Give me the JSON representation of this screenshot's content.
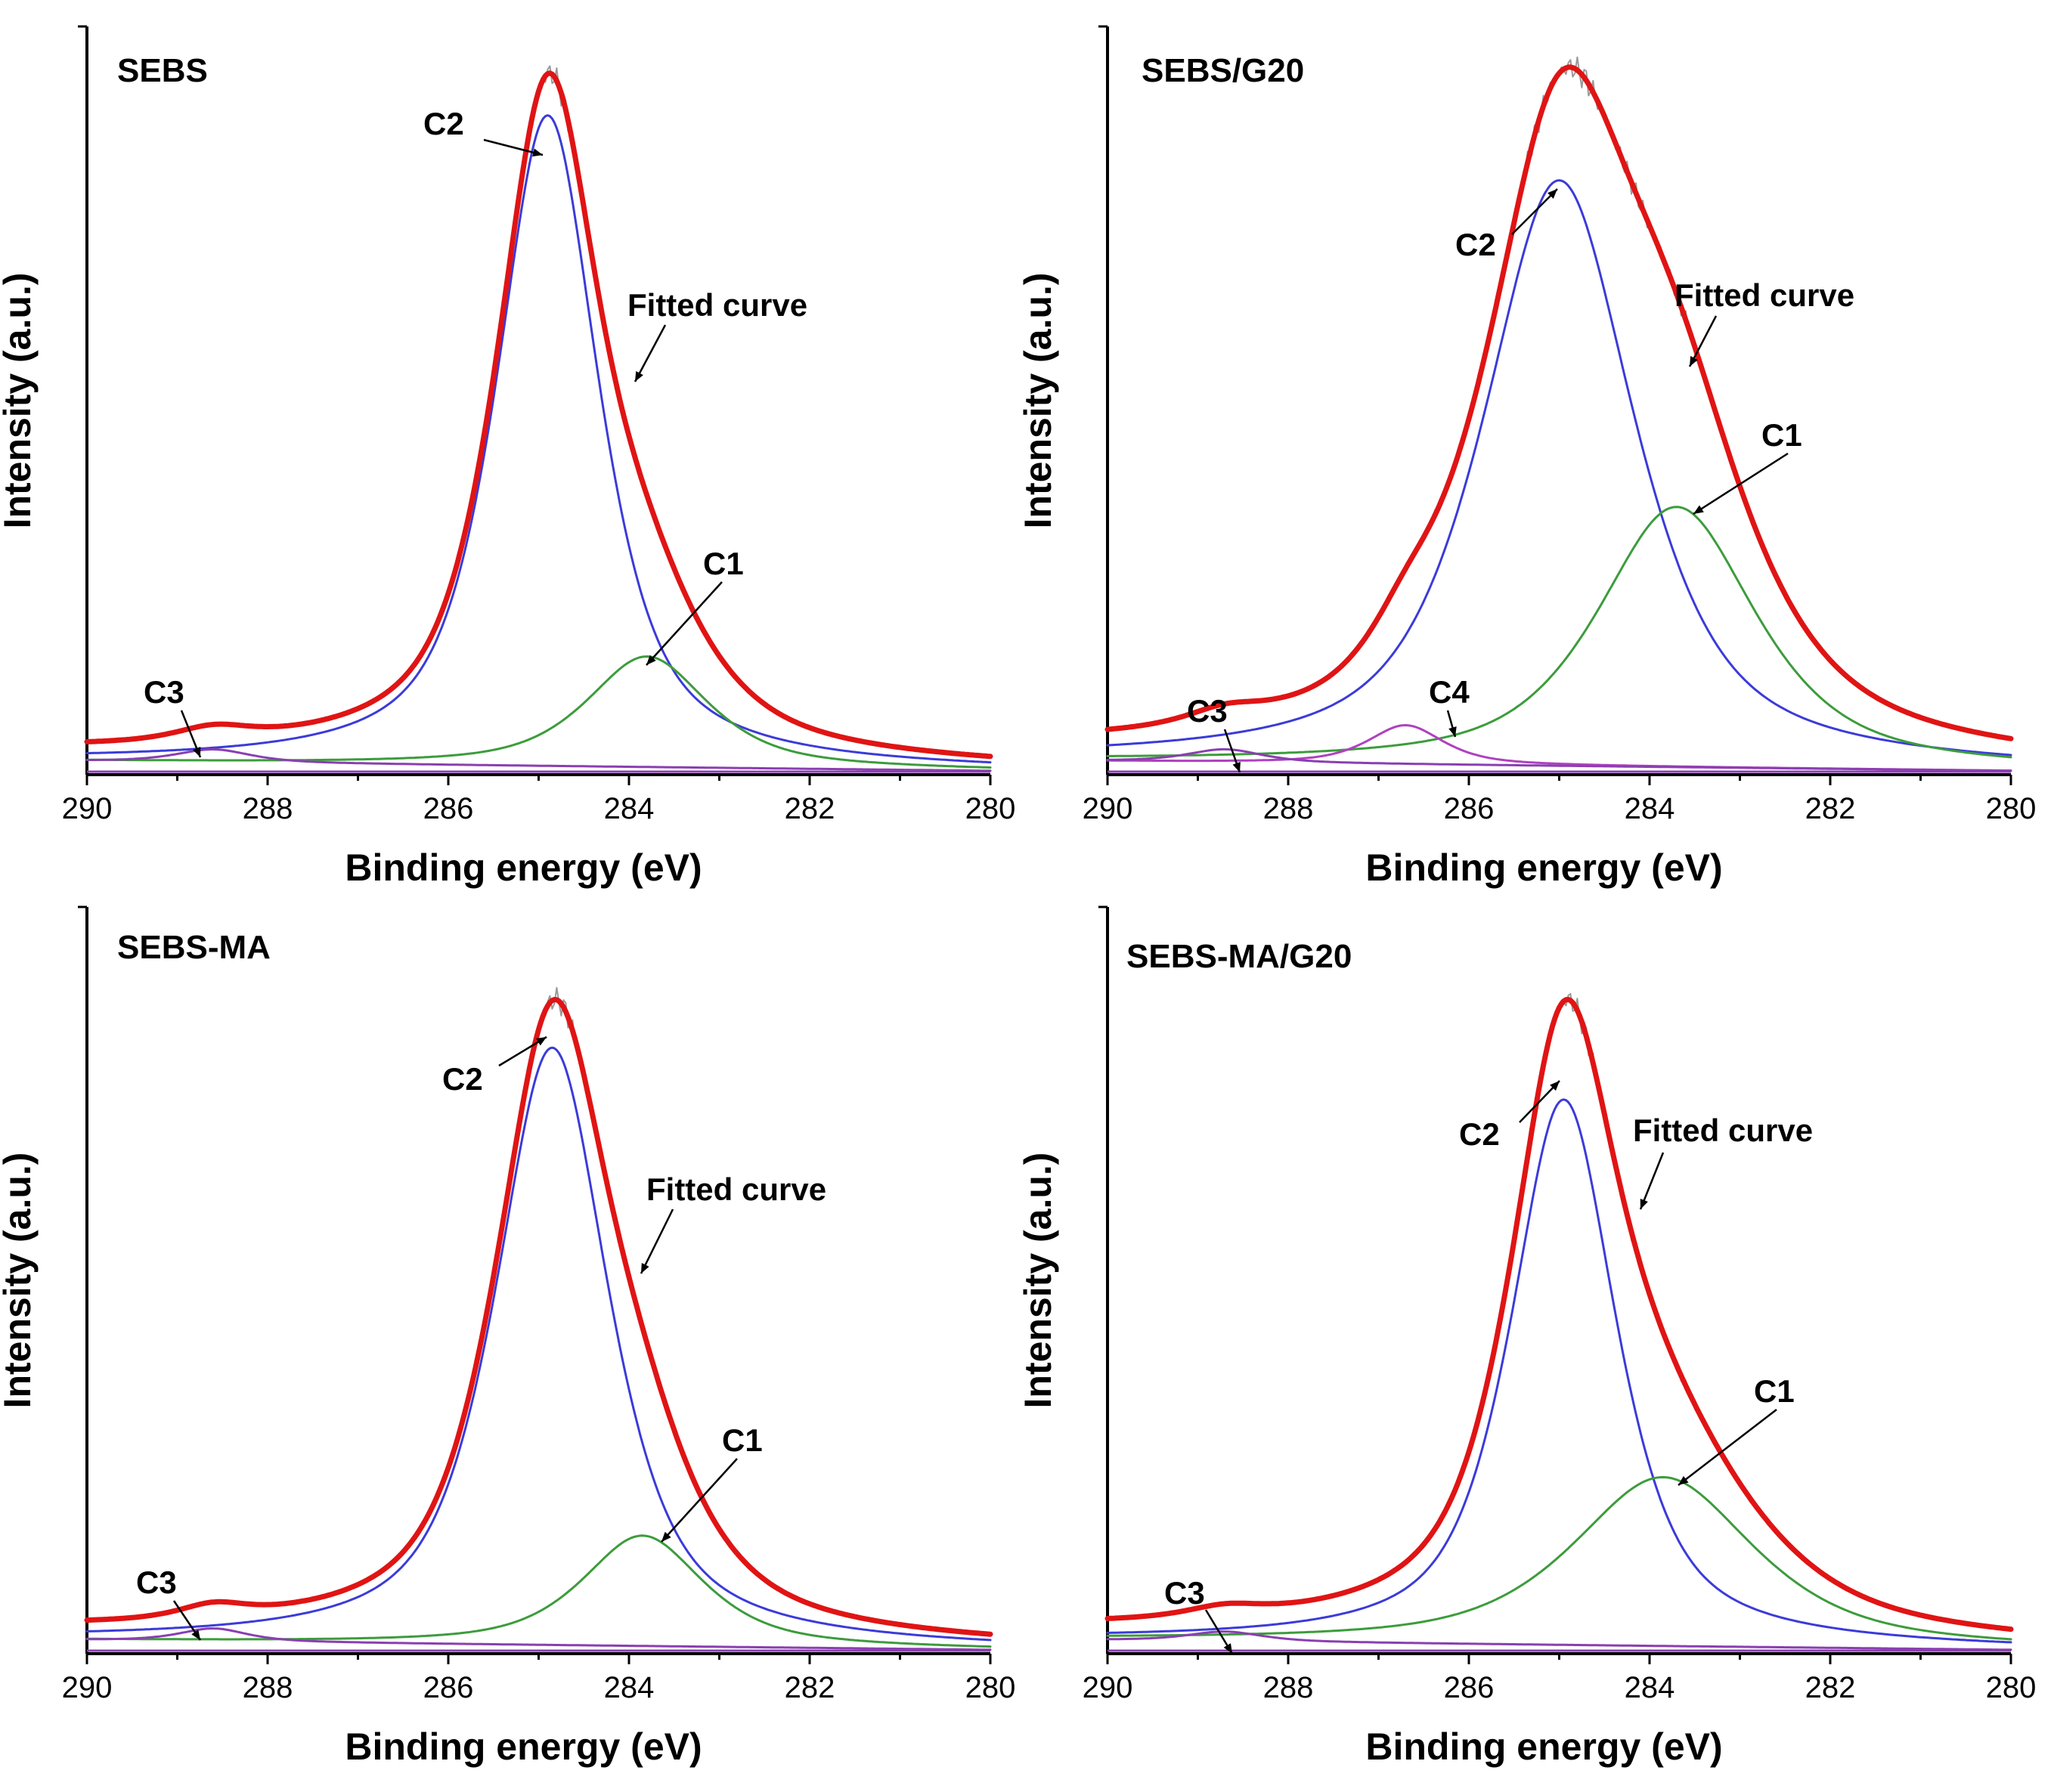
{
  "chart_data": [
    {
      "type": "line",
      "title": "SEBS",
      "xlabel": "Binding energy (eV)",
      "ylabel": "Intensity (a.u.)",
      "xlim": [
        290,
        280
      ],
      "ylim": [
        0,
        1.15
      ],
      "xticks": [
        "290",
        "288",
        "286",
        "284",
        "282",
        "280"
      ],
      "baseline": 0.0,
      "components": [
        {
          "name": "C2",
          "color": "#3b3bd9",
          "center": 284.9,
          "height": 1.0,
          "fwhm": 1.35
        },
        {
          "name": "C1",
          "color": "#3c9c3c",
          "center": 283.8,
          "height": 0.17,
          "fwhm": 1.6
        },
        {
          "name": "C3",
          "color": "#8a3fb0",
          "center": 288.6,
          "height": 0.02,
          "fwhm": 1.0
        }
      ],
      "fitted_curve": {
        "name": "Fitted curve",
        "color": "#e01414"
      },
      "annotations": [
        {
          "label": "SEBS",
          "role": "panel"
        },
        {
          "label": "C2",
          "target": "C2"
        },
        {
          "label": "Fitted curve",
          "target": "fit"
        },
        {
          "label": "C1",
          "target": "C1"
        },
        {
          "label": "C3",
          "target": "C3"
        }
      ]
    },
    {
      "type": "line",
      "title": "SEBS/G20",
      "xlabel": "Binding energy (eV)",
      "ylabel": "Intensity (a.u.)",
      "xlim": [
        290,
        280
      ],
      "ylim": [
        0,
        1.15
      ],
      "xticks": [
        "290",
        "288",
        "286",
        "284",
        "282",
        "280"
      ],
      "baseline": 0.0,
      "components": [
        {
          "name": "C2",
          "color": "#3b3bd9",
          "center": 285.0,
          "height": 0.9,
          "fwhm": 2.0
        },
        {
          "name": "C1",
          "color": "#3c9c3c",
          "center": 283.7,
          "height": 0.4,
          "fwhm": 2.1
        },
        {
          "name": "C4",
          "color": "#b040c0",
          "center": 286.7,
          "height": 0.06,
          "fwhm": 1.0
        },
        {
          "name": "C3",
          "color": "#8a3fb0",
          "center": 288.7,
          "height": 0.02,
          "fwhm": 1.0
        }
      ],
      "fitted_curve": {
        "name": "Fitted curve",
        "color": "#e01414"
      },
      "annotations": [
        {
          "label": "SEBS/G20",
          "role": "panel"
        },
        {
          "label": "C2",
          "target": "C2"
        },
        {
          "label": "Fitted curve",
          "target": "fit"
        },
        {
          "label": "C1",
          "target": "C1"
        },
        {
          "label": "C4",
          "target": "C4"
        },
        {
          "label": "C3",
          "target": "C3"
        }
      ]
    },
    {
      "type": "line",
      "title": "SEBS-MA",
      "xlabel": "Binding energy (eV)",
      "ylabel": "Intensity (a.u.)",
      "xlim": [
        290,
        280
      ],
      "ylim": [
        0,
        1.15
      ],
      "xticks": [
        "290",
        "288",
        "286",
        "284",
        "282",
        "280"
      ],
      "baseline": 0.0,
      "components": [
        {
          "name": "C2",
          "color": "#3b3bd9",
          "center": 284.85,
          "height": 0.92,
          "fwhm": 1.5
        },
        {
          "name": "C1",
          "color": "#3c9c3c",
          "center": 283.85,
          "height": 0.17,
          "fwhm": 1.6
        },
        {
          "name": "C3",
          "color": "#8a3fb0",
          "center": 288.6,
          "height": 0.02,
          "fwhm": 0.9
        }
      ],
      "fitted_curve": {
        "name": "Fitted curve",
        "color": "#e01414"
      },
      "annotations": [
        {
          "label": "SEBS-MA",
          "role": "panel"
        },
        {
          "label": "C2",
          "target": "C2"
        },
        {
          "label": "Fitted curve",
          "target": "fit"
        },
        {
          "label": "C1",
          "target": "C1"
        },
        {
          "label": "C3",
          "target": "C3"
        }
      ]
    },
    {
      "type": "line",
      "title": "SEBS-MA/G20",
      "xlabel": "Binding energy (eV)",
      "ylabel": "Intensity (a.u.)",
      "xlim": [
        290,
        280
      ],
      "ylim": [
        0,
        1.15
      ],
      "xticks": [
        "290",
        "288",
        "286",
        "284",
        "282",
        "280"
      ],
      "baseline": 0.0,
      "components": [
        {
          "name": "C2",
          "color": "#3b3bd9",
          "center": 284.95,
          "height": 0.84,
          "fwhm": 1.4
        },
        {
          "name": "C1",
          "color": "#3c9c3c",
          "center": 283.85,
          "height": 0.26,
          "fwhm": 2.4
        },
        {
          "name": "C3",
          "color": "#8a3fb0",
          "center": 288.7,
          "height": 0.015,
          "fwhm": 1.0
        }
      ],
      "fitted_curve": {
        "name": "Fitted curve",
        "color": "#e01414"
      },
      "annotations": [
        {
          "label": "SEBS-MA/G20",
          "role": "panel"
        },
        {
          "label": "C2",
          "target": "C2"
        },
        {
          "label": "Fitted curve",
          "target": "fit"
        },
        {
          "label": "C1",
          "target": "C1"
        },
        {
          "label": "C3",
          "target": "C3"
        }
      ]
    }
  ]
}
